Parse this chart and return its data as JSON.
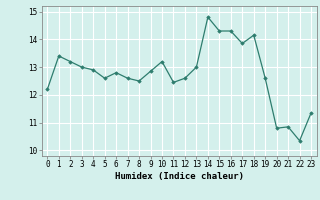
{
  "x": [
    0,
    1,
    2,
    3,
    4,
    5,
    6,
    7,
    8,
    9,
    10,
    11,
    12,
    13,
    14,
    15,
    16,
    17,
    18,
    19,
    20,
    21,
    22,
    23
  ],
  "y": [
    12.2,
    13.4,
    13.2,
    13.0,
    12.9,
    12.6,
    12.8,
    12.6,
    12.5,
    12.85,
    13.2,
    12.45,
    12.6,
    13.0,
    14.8,
    14.3,
    14.3,
    13.85,
    14.15,
    12.6,
    10.8,
    10.85,
    10.35,
    11.35
  ],
  "xlabel": "Humidex (Indice chaleur)",
  "ylim": [
    9.8,
    15.2
  ],
  "xlim": [
    -0.5,
    23.5
  ],
  "yticks": [
    10,
    11,
    12,
    13,
    14,
    15
  ],
  "xticks": [
    0,
    1,
    2,
    3,
    4,
    5,
    6,
    7,
    8,
    9,
    10,
    11,
    12,
    13,
    14,
    15,
    16,
    17,
    18,
    19,
    20,
    21,
    22,
    23
  ],
  "line_color": "#2e7d6e",
  "marker": "D",
  "marker_size": 1.8,
  "bg_color": "#d4f0ec",
  "grid_color": "#ffffff",
  "axis_color": "#888888",
  "label_fontsize": 6.5,
  "tick_fontsize": 5.5
}
